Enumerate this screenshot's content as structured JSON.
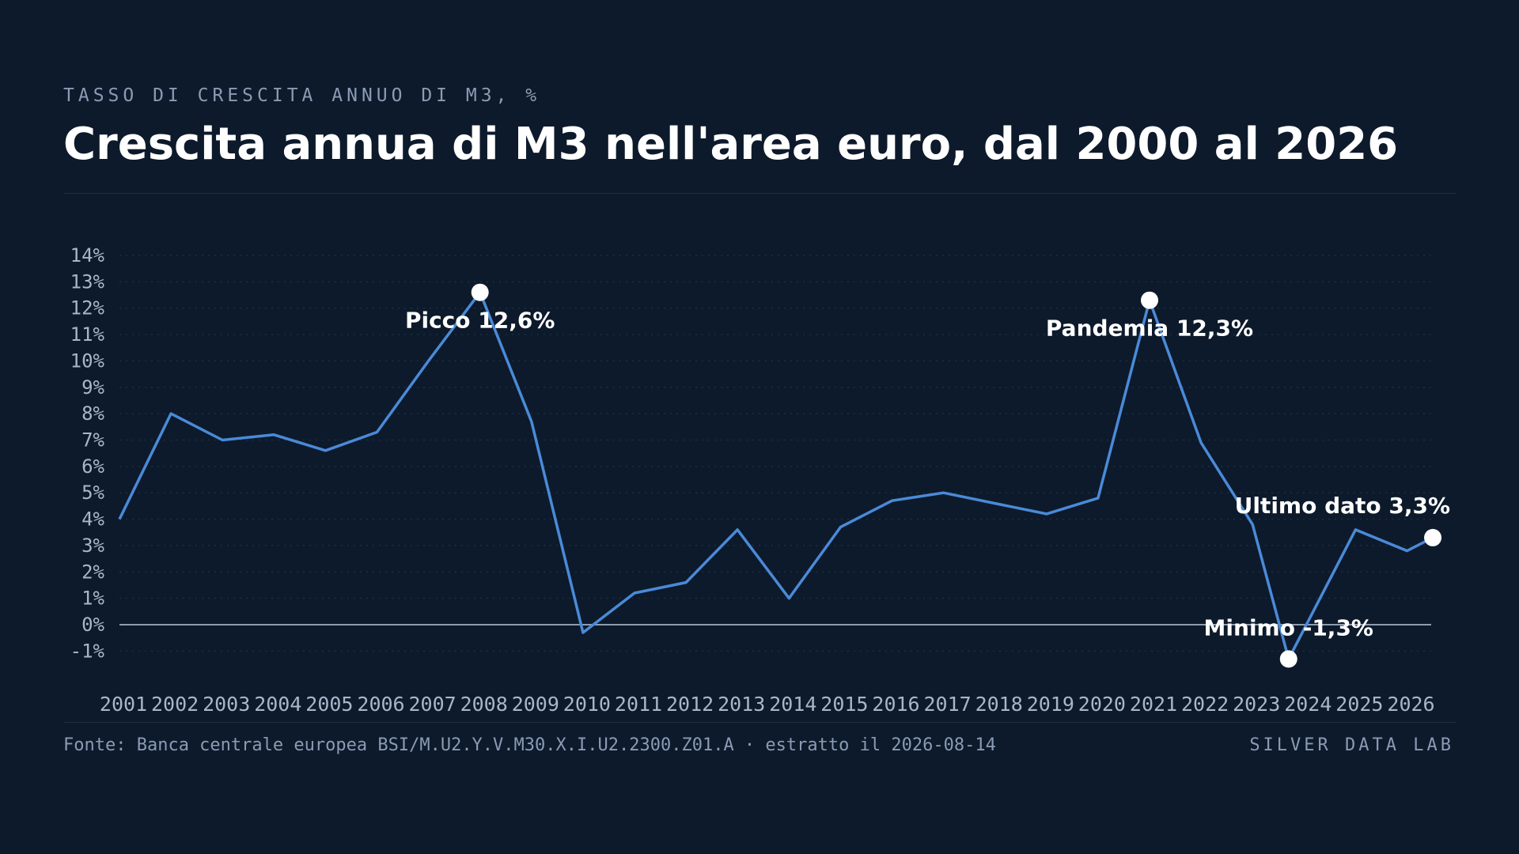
{
  "header": {
    "kicker": "TASSO DI CRESCITA ANNUO DI M3, %",
    "title": "Crescita annua di M3 nell'area euro, dal 2000 al 2026"
  },
  "footer": {
    "source": "Fonte: Banca centrale europea BSI/M.U2.Y.V.M30.X.I.U2.2300.Z01.A · estratto il 2026-08-14",
    "brand": "SILVER DATA LAB"
  },
  "colors": {
    "background": "#0d1a2b",
    "line": "#4a8ad8",
    "marker": "#ffffff",
    "zero_line": "#8f9db0",
    "grid": "#1f2d40"
  },
  "chart_data": {
    "type": "line",
    "title": "",
    "xlabel": "",
    "ylabel": "",
    "ylim": [
      -1.5,
      14.5
    ],
    "y_ticks": [
      -1,
      0,
      1,
      2,
      3,
      4,
      5,
      6,
      7,
      8,
      9,
      10,
      11,
      12,
      13,
      14
    ],
    "y_tick_labels": [
      "-1%",
      "0%",
      "1%",
      "2%",
      "3%",
      "4%",
      "5%",
      "6%",
      "7%",
      "8%",
      "9%",
      "10%",
      "11%",
      "12%",
      "13%",
      "14%"
    ],
    "x_range": [
      2000.9,
      2026.4
    ],
    "x_ticks": [
      2001,
      2002,
      2003,
      2004,
      2005,
      2006,
      2007,
      2008,
      2009,
      2010,
      2011,
      2012,
      2013,
      2014,
      2015,
      2016,
      2017,
      2018,
      2019,
      2020,
      2021,
      2022,
      2023,
      2024,
      2025,
      2026
    ],
    "x_tick_labels": [
      "2001",
      "2002",
      "2003",
      "2004",
      "2005",
      "2006",
      "2007",
      "2008",
      "2009",
      "2010",
      "2011",
      "2012",
      "2013",
      "2014",
      "2015",
      "2016",
      "2017",
      "2018",
      "2019",
      "2020",
      "2021",
      "2022",
      "2023",
      "2024",
      "2025",
      "2026"
    ],
    "grid": true,
    "grid_style": "dotted horizontal",
    "series": [
      {
        "x": [
          2000.9,
          2001.9,
          2002.9,
          2003.9,
          2004.9,
          2005.9,
          2006.9,
          2007.9,
          2008.9,
          2009.9,
          2010.9,
          2011.9,
          2012.9,
          2013.9,
          2014.9,
          2015.9,
          2016.9,
          2017.9,
          2018.9,
          2019.9,
          2020.9,
          2021.9,
          2022.9,
          2023.6,
          2024.9,
          2025.9,
          2026.4
        ],
        "values": [
          4.0,
          8.0,
          7.0,
          7.2,
          6.6,
          7.3,
          10.0,
          12.6,
          7.7,
          -0.3,
          1.2,
          1.6,
          3.6,
          1.0,
          3.7,
          4.7,
          5.0,
          4.6,
          4.2,
          4.8,
          12.3,
          6.9,
          3.8,
          -1.3,
          3.6,
          2.8,
          3.3
        ]
      }
    ],
    "annotations": [
      {
        "label": "Picco 12,6%",
        "x": 2007.9,
        "y": 12.6,
        "position": "below"
      },
      {
        "label": "Pandemia 12,3%",
        "x": 2020.9,
        "y": 12.3,
        "position": "below"
      },
      {
        "label": "Minimo -1,3%",
        "x": 2023.6,
        "y": -1.3,
        "position": "above"
      },
      {
        "label": "Ultimo dato 3,3%",
        "x": 2026.4,
        "y": 3.3,
        "position": "above-left"
      }
    ]
  }
}
